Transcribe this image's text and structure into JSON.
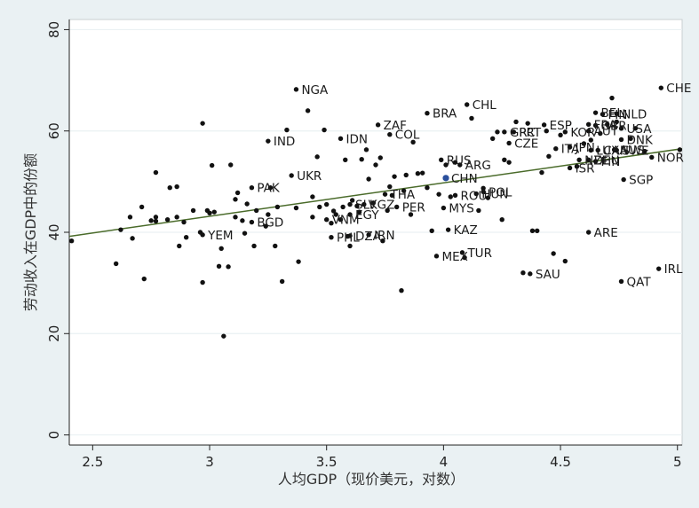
{
  "chart_data": {
    "type": "scatter",
    "xlabel": "人均GDP（现价美元，对数）",
    "ylabel": "劳动收入在GDP中的份额",
    "xlim": [
      2.4,
      5.02
    ],
    "ylim": [
      -2,
      82
    ],
    "xticks": [
      2.5,
      3,
      3.5,
      4,
      4.5,
      5
    ],
    "yticks": [
      0,
      20,
      40,
      60,
      80
    ],
    "grid": "horizontal",
    "colors": {
      "background": "#eaf1f3",
      "plot_bg": "#ffffff",
      "point": "#111111",
      "highlight": "#2a4f9c",
      "highlight_label": "#d22020",
      "fit_line": "#4a6b2a"
    },
    "fit_line": {
      "x": [
        2.4,
        5.02
      ],
      "y": [
        39.2,
        56.5
      ]
    },
    "labeled_points": [
      {
        "label": "NGA",
        "x": 3.37,
        "y": 68.2
      },
      {
        "label": "CHE",
        "x": 4.93,
        "y": 68.5
      },
      {
        "label": "CHL",
        "x": 4.1,
        "y": 65.2
      },
      {
        "label": "BRA",
        "x": 3.93,
        "y": 63.5
      },
      {
        "label": "BEL",
        "x": 4.65,
        "y": 63.6
      },
      {
        "label": "FIN",
        "x": 4.68,
        "y": 63.3
      },
      {
        "label": "NLD",
        "x": 4.74,
        "y": 63.4
      },
      {
        "label": "ZAF",
        "x": 3.72,
        "y": 61.2
      },
      {
        "label": "ESP",
        "x": 4.43,
        "y": 61.2
      },
      {
        "label": "FRA",
        "x": 4.62,
        "y": 61.3
      },
      {
        "label": "GBR",
        "x": 4.65,
        "y": 61.1
      },
      {
        "label": "USA",
        "x": 4.76,
        "y": 60.5
      },
      {
        "label": "COL",
        "x": 3.77,
        "y": 59.3
      },
      {
        "label": "GRC",
        "x": 4.26,
        "y": 59.8
      },
      {
        "label": "PRT",
        "x": 4.3,
        "y": 59.8
      },
      {
        "label": "KOR",
        "x": 4.52,
        "y": 59.8
      },
      {
        "label": "AUT",
        "x": 4.62,
        "y": 60.0
      },
      {
        "label": "IND",
        "x": 3.25,
        "y": 58.0
      },
      {
        "label": "IDN",
        "x": 3.56,
        "y": 58.5
      },
      {
        "label": "DNK",
        "x": 4.76,
        "y": 58.3
      },
      {
        "label": "CZE",
        "x": 4.28,
        "y": 57.6
      },
      {
        "label": "ITA",
        "x": 4.48,
        "y": 56.5
      },
      {
        "label": "JPN",
        "x": 4.54,
        "y": 56.8
      },
      {
        "label": "LUX",
        "x": 4.63,
        "y": 56.2
      },
      {
        "label": "CAN",
        "x": 4.66,
        "y": 56.2
      },
      {
        "label": "AUS",
        "x": 4.73,
        "y": 56.3
      },
      {
        "label": "SWE",
        "x": 4.74,
        "y": 56.2
      },
      {
        "label": "NZL",
        "x": 4.58,
        "y": 54.3
      },
      {
        "label": "DEU",
        "x": 4.62,
        "y": 54.3
      },
      {
        "label": "FIN",
        "x": 4.65,
        "y": 54.0
      },
      {
        "label": "NOR",
        "x": 4.89,
        "y": 54.8
      },
      {
        "label": "RUS",
        "x": 3.99,
        "y": 54.3
      },
      {
        "label": "ARG",
        "x": 4.07,
        "y": 53.3
      },
      {
        "label": "ISR",
        "x": 4.54,
        "y": 52.7
      },
      {
        "label": "UKR",
        "x": 3.35,
        "y": 51.2
      },
      {
        "label": "CHN",
        "x": 4.01,
        "y": 50.7
      },
      {
        "label": "SGP",
        "x": 4.77,
        "y": 50.4
      },
      {
        "label": "PAK",
        "x": 3.18,
        "y": 48.8
      },
      {
        "label": "POL",
        "x": 4.17,
        "y": 48.0
      },
      {
        "label": "HUN",
        "x": 4.14,
        "y": 47.6
      },
      {
        "label": "ROU",
        "x": 4.05,
        "y": 47.3
      },
      {
        "label": "THA",
        "x": 3.75,
        "y": 47.5
      },
      {
        "label": "SLV",
        "x": 3.6,
        "y": 45.5
      },
      {
        "label": "KGZ",
        "x": 3.66,
        "y": 45.5
      },
      {
        "label": "PER",
        "x": 3.8,
        "y": 45.0
      },
      {
        "label": "MYS",
        "x": 4.0,
        "y": 44.8
      },
      {
        "label": "EGY",
        "x": 3.6,
        "y": 43.5
      },
      {
        "label": "VNM",
        "x": 3.5,
        "y": 42.5
      },
      {
        "label": "BGD",
        "x": 3.18,
        "y": 42.0
      },
      {
        "label": "KAZ",
        "x": 4.02,
        "y": 40.5
      },
      {
        "label": "ARE",
        "x": 4.62,
        "y": 40.0
      },
      {
        "label": "YEM",
        "x": 2.97,
        "y": 39.5
      },
      {
        "label": "PHL",
        "x": 3.52,
        "y": 39.0
      },
      {
        "label": "DZA",
        "x": 3.6,
        "y": 39.3
      },
      {
        "label": "IRN",
        "x": 3.68,
        "y": 39.5
      },
      {
        "label": "TUR",
        "x": 4.08,
        "y": 36.0
      },
      {
        "label": "MEX",
        "x": 3.97,
        "y": 35.3
      },
      {
        "label": "IRL",
        "x": 4.92,
        "y": 32.8
      },
      {
        "label": "SAU",
        "x": 4.37,
        "y": 31.8
      },
      {
        "label": "QAT",
        "x": 4.76,
        "y": 30.3
      }
    ],
    "unlabeled_points": [
      [
        2.41,
        38.3
      ],
      [
        2.6,
        33.8
      ],
      [
        2.62,
        40.5
      ],
      [
        2.66,
        43.0
      ],
      [
        2.67,
        38.8
      ],
      [
        2.71,
        45.0
      ],
      [
        2.72,
        30.8
      ],
      [
        2.75,
        42.3
      ],
      [
        2.77,
        43.0
      ],
      [
        2.77,
        42.2
      ],
      [
        2.77,
        51.8
      ],
      [
        2.82,
        42.5
      ],
      [
        2.83,
        48.8
      ],
      [
        2.86,
        49.0
      ],
      [
        2.86,
        43.0
      ],
      [
        2.87,
        37.3
      ],
      [
        2.89,
        42.0
      ],
      [
        2.9,
        39.0
      ],
      [
        2.93,
        44.3
      ],
      [
        2.96,
        40.0
      ],
      [
        2.97,
        30.1
      ],
      [
        2.97,
        61.5
      ],
      [
        2.99,
        44.3
      ],
      [
        3.0,
        43.8
      ],
      [
        3.01,
        53.2
      ],
      [
        3.02,
        44.0
      ],
      [
        3.04,
        33.3
      ],
      [
        3.05,
        36.8
      ],
      [
        3.06,
        19.5
      ],
      [
        3.08,
        33.2
      ],
      [
        3.09,
        53.3
      ],
      [
        3.11,
        43.0
      ],
      [
        3.11,
        46.5
      ],
      [
        3.12,
        47.8
      ],
      [
        3.14,
        42.3
      ],
      [
        3.15,
        39.8
      ],
      [
        3.16,
        45.6
      ],
      [
        3.19,
        37.3
      ],
      [
        3.2,
        44.3
      ],
      [
        3.24,
        41.2
      ],
      [
        3.25,
        43.5
      ],
      [
        3.26,
        48.8
      ],
      [
        3.28,
        37.3
      ],
      [
        3.29,
        45.0
      ],
      [
        3.31,
        30.3
      ],
      [
        3.33,
        60.2
      ],
      [
        3.37,
        44.8
      ],
      [
        3.38,
        34.2
      ],
      [
        3.42,
        64.0
      ],
      [
        3.44,
        43.0
      ],
      [
        3.44,
        47.0
      ],
      [
        3.46,
        54.9
      ],
      [
        3.47,
        45.0
      ],
      [
        3.49,
        60.2
      ],
      [
        3.5,
        45.5
      ],
      [
        3.52,
        41.8
      ],
      [
        3.53,
        44.2
      ],
      [
        3.54,
        43.5
      ],
      [
        3.56,
        42.5
      ],
      [
        3.57,
        45.0
      ],
      [
        3.58,
        54.3
      ],
      [
        3.59,
        39.2
      ],
      [
        3.6,
        37.3
      ],
      [
        3.61,
        46.3
      ],
      [
        3.63,
        45.2
      ],
      [
        3.64,
        44.0
      ],
      [
        3.65,
        54.4
      ],
      [
        3.67,
        56.3
      ],
      [
        3.68,
        50.5
      ],
      [
        3.7,
        45.8
      ],
      [
        3.71,
        53.3
      ],
      [
        3.73,
        54.7
      ],
      [
        3.74,
        38.3
      ],
      [
        3.76,
        44.3
      ],
      [
        3.77,
        49.0
      ],
      [
        3.78,
        47.3
      ],
      [
        3.79,
        51.0
      ],
      [
        3.82,
        28.5
      ],
      [
        3.83,
        48.2
      ],
      [
        3.84,
        51.3
      ],
      [
        3.86,
        43.5
      ],
      [
        3.87,
        57.8
      ],
      [
        3.89,
        51.6
      ],
      [
        3.91,
        51.7
      ],
      [
        3.93,
        48.8
      ],
      [
        3.95,
        40.3
      ],
      [
        3.98,
        47.5
      ],
      [
        4.01,
        53.3
      ],
      [
        4.03,
        47.0
      ],
      [
        4.05,
        53.8
      ],
      [
        4.09,
        35.0
      ],
      [
        4.12,
        62.5
      ],
      [
        4.15,
        44.3
      ],
      [
        4.17,
        48.7
      ],
      [
        4.19,
        46.8
      ],
      [
        4.21,
        58.5
      ],
      [
        4.23,
        59.8
      ],
      [
        4.25,
        42.5
      ],
      [
        4.26,
        54.3
      ],
      [
        4.28,
        53.8
      ],
      [
        4.31,
        61.8
      ],
      [
        4.34,
        32.0
      ],
      [
        4.36,
        61.5
      ],
      [
        4.38,
        40.3
      ],
      [
        4.4,
        40.3
      ],
      [
        4.42,
        51.8
      ],
      [
        4.44,
        60.0
      ],
      [
        4.45,
        55.0
      ],
      [
        4.47,
        35.8
      ],
      [
        4.5,
        59.2
      ],
      [
        4.52,
        34.3
      ],
      [
        4.57,
        53.0
      ],
      [
        4.6,
        57.5
      ],
      [
        4.63,
        58.2
      ],
      [
        4.67,
        59.5
      ],
      [
        4.7,
        61.3
      ],
      [
        4.72,
        66.5
      ],
      [
        4.74,
        61.8
      ],
      [
        4.8,
        58.5
      ],
      [
        4.82,
        60.5
      ],
      [
        4.86,
        56.0
      ],
      [
        5.01,
        56.3
      ]
    ]
  }
}
